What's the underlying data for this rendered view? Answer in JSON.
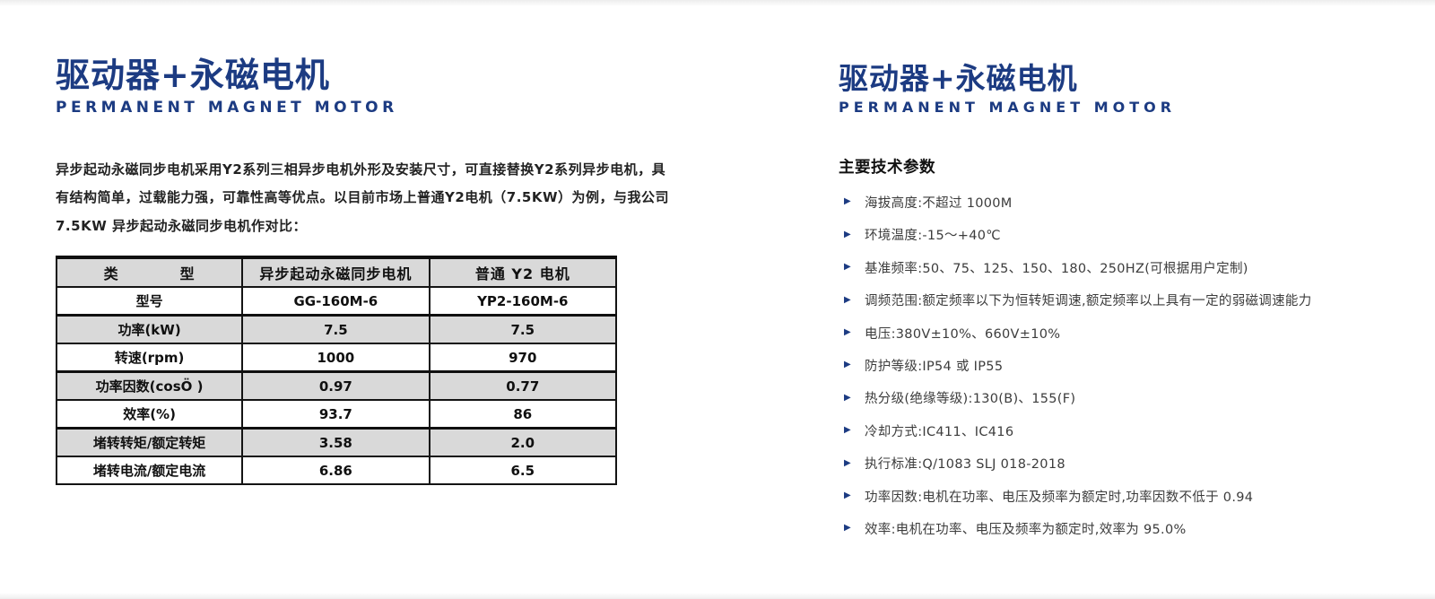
{
  "accent_color": "#1c3b82",
  "table_alt_row_color": "#d9d9d9",
  "left": {
    "title": "驱动器+永磁电机",
    "subtitle": "PERMANENT MAGNET MOTOR",
    "intro_lines": [
      "异步起动永磁同步电机采用Y2系列三相异步电机外形及安装尺寸，可直接替换Y2系列异步电机，具",
      "有结构简单，过载能力强，可靠性高等优点。以目前市场上普通Y2电机（7.5KW）为例，与我公司",
      "7.5KW 异步起动永磁同步电机作对比："
    ],
    "table": {
      "headers": [
        "类　　　　型",
        "异步起动永磁同步电机",
        "普通 Y2 电机"
      ],
      "rows": [
        {
          "label": "型号",
          "pm_motor": "GG-160M-6",
          "y2_motor": "YP2-160M-6"
        },
        {
          "label": "功率(kW)",
          "pm_motor": "7.5",
          "y2_motor": "7.5"
        },
        {
          "label": "转速(rpm)",
          "pm_motor": "1000",
          "y2_motor": "970"
        },
        {
          "label": "功率因数(cosÖ )",
          "pm_motor": "0.97",
          "y2_motor": "0.77"
        },
        {
          "label": "效率(%)",
          "pm_motor": "93.7",
          "y2_motor": "86"
        },
        {
          "label": "堵转转矩/额定转矩",
          "pm_motor": "3.58",
          "y2_motor": "2.0"
        },
        {
          "label": "堵转电流/额定电流",
          "pm_motor": "6.86",
          "y2_motor": "6.5"
        }
      ]
    }
  },
  "right": {
    "title": "驱动器+永磁电机",
    "subtitle": "PERMANENT MAGNET MOTOR",
    "section_heading": "主要技术参数",
    "bullet_icon": "▶",
    "bullets": [
      "海拔高度:不超过 1000M",
      "环境温度:-15～+40℃",
      "基准频率:50、75、125、150、180、250HZ(可根据用户定制)",
      "调频范围:额定频率以下为恒转矩调速,额定频率以上具有一定的弱磁调速能力",
      "电压:380V±10%、660V±10%",
      "防护等级:IP54 或 IP55",
      "热分级(绝缘等级):130(B)、155(F)",
      "冷却方式:IC411、IC416",
      "执行标准:Q/1083 SLJ 018-2018",
      "功率因数:电机在功率、电压及频率为额定时,功率因数不低于 0.94",
      "效率:电机在功率、电压及频率为额定时,效率为 95.0%"
    ]
  }
}
